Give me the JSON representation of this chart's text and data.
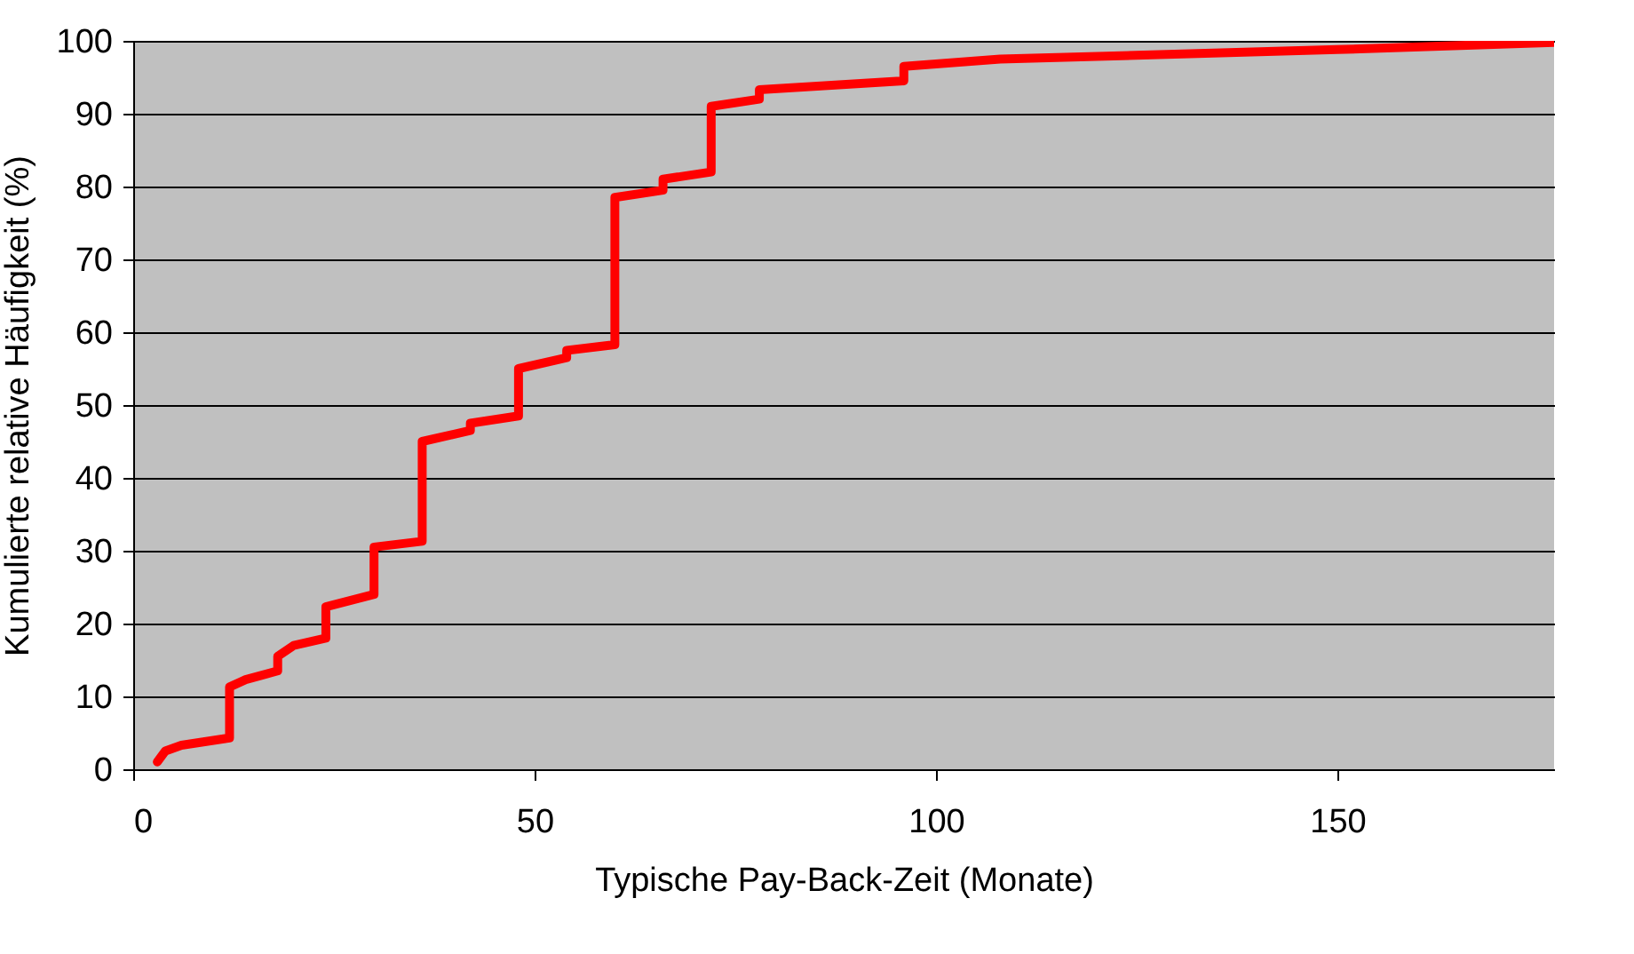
{
  "chart_data": {
    "type": "line",
    "xlabel": "Typische Pay-Back-Zeit (Monate)",
    "ylabel": "Kumulierte relative Häufigkeit (%)",
    "series": [
      {
        "color": "#ff0000",
        "x": [
          3,
          4,
          6,
          12,
          12,
          14,
          18,
          18,
          20,
          24,
          24,
          30,
          30,
          36,
          36,
          42,
          42,
          48,
          48,
          54,
          54,
          60,
          60,
          66,
          66,
          72,
          72,
          78,
          78,
          96,
          96,
          108,
          150,
          177
        ],
        "values": [
          1,
          2.5,
          3.3,
          4.3,
          11.3,
          12.3,
          13.5,
          15.5,
          17,
          18,
          22.3,
          24,
          30.5,
          31.3,
          45,
          46.5,
          47.5,
          48.5,
          55,
          56.5,
          57.5,
          58.3,
          78.5,
          79.5,
          81,
          82,
          91,
          92,
          93.3,
          94.5,
          96.5,
          97.5,
          98.8,
          99.8
        ]
      }
    ],
    "xlim": [
      0,
      177
    ],
    "xticks": [
      0,
      50,
      100,
      150
    ],
    "ylim": [
      0,
      100
    ],
    "yticks": [
      0,
      10,
      20,
      30,
      40,
      50,
      60,
      70,
      80,
      90,
      100
    ],
    "grid": "y",
    "marker": "none",
    "line_style": "solid"
  }
}
